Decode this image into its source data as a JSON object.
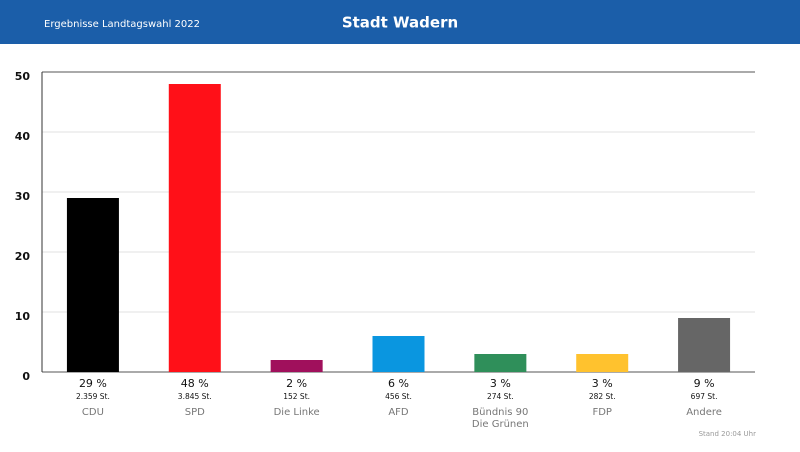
{
  "chart_data": {
    "type": "bar",
    "title": "Stadt Wadern",
    "subtitle": "Ergebnisse Landtagswahl 2022",
    "footnote": "Stand 20:04 Uhr",
    "categories": [
      "CDU",
      "SPD",
      "Die Linke",
      "AFD",
      "Bündnis 90\nDie Grünen",
      "FDP",
      "Andere"
    ],
    "values": [
      29,
      48,
      2,
      6,
      3,
      3,
      9
    ],
    "value_labels": [
      "29 %",
      "48 %",
      "2 %",
      "6 %",
      "3 %",
      "3 %",
      "9 %"
    ],
    "votes": [
      "2.359 St.",
      "3.845 St.",
      "152 St.",
      "456 St.",
      "274 St.",
      "282 St.",
      "697 St."
    ],
    "colors": [
      "#000000",
      "#ff1018",
      "#a0105c",
      "#0a96e0",
      "#2f8f5a",
      "#ffc22e",
      "#666666"
    ],
    "ylim": [
      0,
      50
    ],
    "yticks": [
      0,
      10,
      20,
      30,
      40,
      50
    ],
    "grid": true
  }
}
